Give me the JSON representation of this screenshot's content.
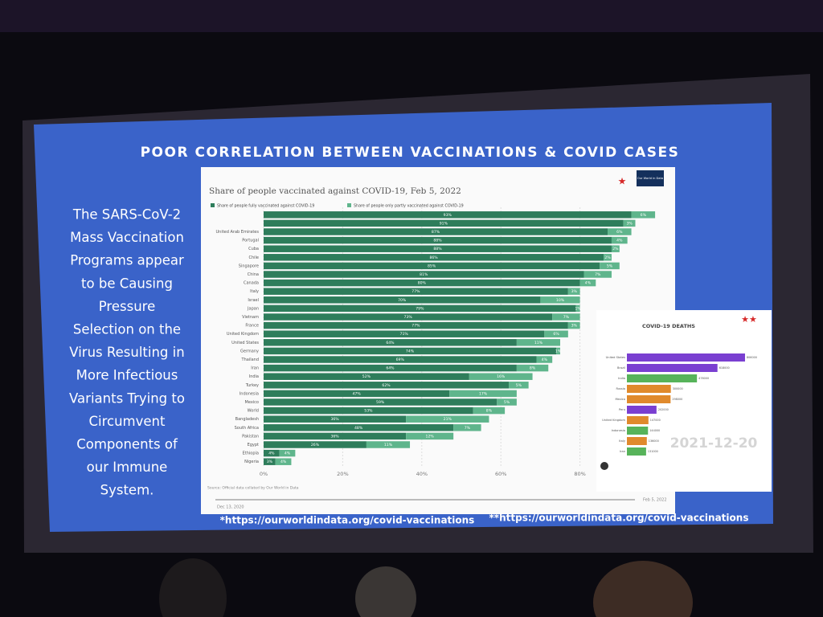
{
  "slide": {
    "title": "POOR CORRELATION BETWEEN VACCINATIONS & COVID CASES",
    "body_lines": [
      "The SARS-CoV-2",
      "Mass Vaccination",
      "Programs appear",
      "to be Causing",
      "Pressure",
      "Selection on the",
      "Virus Resulting in",
      "More Infectious",
      "Variants Trying to",
      "Circumvent",
      "Components of",
      "our Immune",
      "System."
    ],
    "footnote_1": "*https://ourworldindata.org/covid-vaccinations",
    "footnote_2": "**https://ourworldindata.org/covid-vaccinations"
  },
  "chart_data": [
    {
      "type": "stacked_bar_horizontal",
      "title": "Share of people vaccinated against COVID-19, Feb 5, 2022",
      "marker": "★",
      "logo": "Our World in Data",
      "source": "Source: Official data collated by Our World in Data",
      "timeline_start": "Dec 13, 2020",
      "timeline_end": "Feb 5, 2022",
      "categories": [
        null,
        null,
        "United Arab Emirates",
        "Portugal",
        "Cuba",
        "Chile",
        "Singapore",
        "China",
        "Canada",
        "Italy",
        "Israel",
        "Japan",
        "Vietnam",
        "France",
        "United Kingdom",
        "United States",
        "Germany",
        "Thailand",
        "Iran",
        "India",
        "Turkey",
        "Indonesia",
        "Mexico",
        "World",
        "Bangladesh",
        "South Africa",
        "Pakistan",
        "Egypt",
        "Ethiopia",
        "Nigeria"
      ],
      "series": [
        {
          "name": "Share of people fully vaccinated against COVID-19",
          "color": "#2e7d5b",
          "values": [
            93,
            91,
            87,
            88,
            88,
            86,
            85,
            81,
            80,
            77,
            70,
            79,
            73,
            77,
            71,
            64,
            74,
            69,
            64,
            52,
            62,
            47,
            59,
            53,
            36,
            48,
            36,
            26,
            4,
            3
          ],
          "value_labels": [
            "93%",
            "91%",
            "87%",
            "88%",
            "88%",
            "86%",
            "85%",
            "81%",
            "80%",
            "77%",
            "70%",
            "79%",
            "73%",
            "77%",
            "71%",
            "64%",
            "74%",
            "69%",
            "64%",
            "52%",
            "62%",
            "47%",
            "59%",
            "53%",
            "36%",
            "48%",
            "36%",
            "26%",
            "4%",
            "3%"
          ]
        },
        {
          "name": "Share of people only partly vaccinated against COVID-19",
          "color": "#5fb58c",
          "values": [
            6,
            3,
            6,
            4,
            2,
            2,
            5,
            7,
            4,
            3,
            10,
            1,
            7,
            3,
            6,
            11,
            1,
            4,
            8,
            16,
            5,
            17,
            5,
            8,
            21,
            7,
            12,
            11,
            4,
            4
          ],
          "value_labels": [
            "6%",
            "3%",
            "6%",
            "4%",
            "2%",
            "2%",
            "5%",
            "7%",
            "4%",
            "3%",
            "10%",
            "1%",
            "7%",
            "3%",
            "6%",
            "11%",
            "1%",
            "4%",
            "8%",
            "16%",
            "5%",
            "17%",
            "5%",
            "8%",
            "21%",
            "7%",
            "12%",
            "11%",
            "4%",
            "4%"
          ]
        }
      ],
      "xlim": [
        0,
        100
      ],
      "xticks": [
        {
          "value": 0,
          "label": "0%"
        },
        {
          "value": 20,
          "label": "20%"
        },
        {
          "value": 40,
          "label": "40%"
        },
        {
          "value": 60,
          "label": "60%"
        },
        {
          "value": 80,
          "label": "80%"
        }
      ]
    },
    {
      "type": "bar_horizontal",
      "title": "COVID-19 DEATHS",
      "marker": "★★",
      "date": "2021-12-20",
      "categories": [
        "United States",
        "Brazil",
        "India",
        "Russia",
        "Mexico",
        "Peru",
        "United Kingdom",
        "Indonesia",
        "Italy",
        "Iran"
      ],
      "values": [
        806000,
        618000,
        478000,
        300000,
        298000,
        202000,
        147000,
        144000,
        136000,
        131000
      ],
      "colors": [
        "#7a3fd1",
        "#7a3fd1",
        "#57b35a",
        "#e08a2c",
        "#e08a2c",
        "#7a3fd1",
        "#e08a2c",
        "#57b35a",
        "#e08a2c",
        "#57b35a"
      ],
      "xlim": [
        0,
        850000
      ]
    }
  ]
}
